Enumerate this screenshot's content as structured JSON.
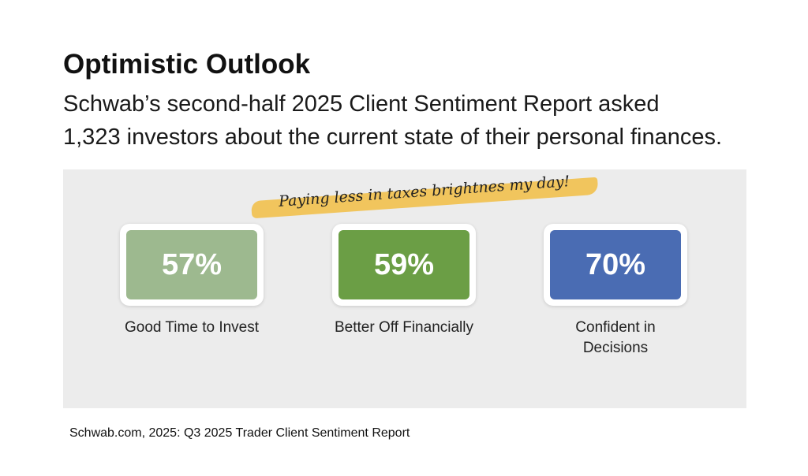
{
  "header": {
    "title": "Optimistic Outlook",
    "subtitle_lines": [
      "Schwab’s second-half 2025 Client Sentiment Report asked",
      "1,323 investors about the current state of their personal finances."
    ]
  },
  "annotation": "Paying less in taxes brightnes my day!",
  "stats": [
    {
      "value": "57%",
      "label": "Good Time to Invest",
      "color": "#9db98f"
    },
    {
      "value": "59%",
      "label": "Better Off Financially",
      "color": "#6b9e45"
    },
    {
      "value": "70%",
      "label": "Confident in Decisions",
      "color": "#4a6cb3"
    }
  ],
  "footer": "Schwab.com, 2025: Q3 2025 Trader Client Sentiment Report"
}
